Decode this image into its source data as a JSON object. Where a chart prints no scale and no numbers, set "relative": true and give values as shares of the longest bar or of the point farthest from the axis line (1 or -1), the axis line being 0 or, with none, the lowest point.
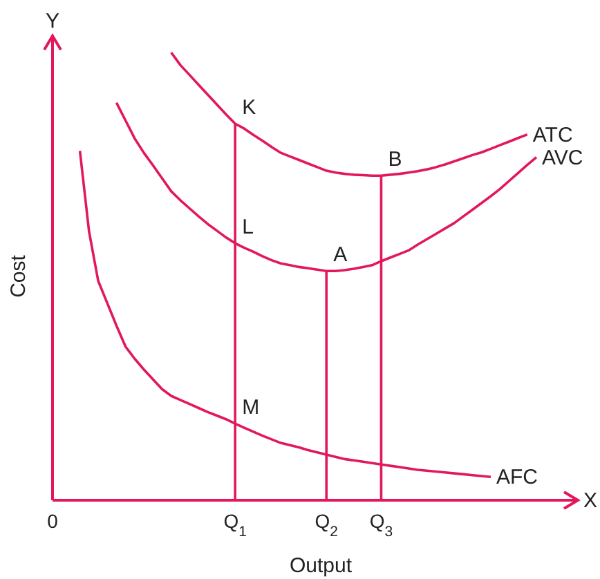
{
  "chart_data": {
    "type": "line",
    "relative": true,
    "xlabel": "Output",
    "ylabel": "Cost",
    "categories": [
      "0",
      null,
      null,
      null,
      null,
      null,
      null,
      null,
      null,
      null,
      null,
      null,
      null,
      null,
      null,
      null,
      null,
      null,
      null,
      null,
      "Q$_{1}$",
      null,
      null,
      null,
      null,
      null,
      null,
      null,
      null,
      null,
      "Q$_{2}$",
      null,
      null,
      null,
      null,
      null,
      "Q$_{3}$",
      null,
      null,
      null,
      null,
      null,
      null,
      null,
      null,
      null,
      null,
      null,
      null,
      null,
      null,
      null,
      null,
      null
    ],
    "series": [
      {
        "name": "ATC",
        "color": "#e2185b",
        "values": [
          null,
          null,
          null,
          null,
          null,
          null,
          null,
          null,
          null,
          null,
          null,
          null,
          null,
          1.0,
          0.972,
          0.95,
          0.928,
          0.906,
          0.884,
          0.862,
          0.841,
          0.83,
          0.816,
          0.803,
          0.789,
          0.776,
          0.768,
          0.76,
          0.752,
          0.744,
          0.736,
          0.732,
          0.729,
          0.727,
          0.726,
          0.725,
          0.725,
          0.727,
          0.729,
          0.732,
          0.735,
          0.739,
          0.744,
          0.75,
          0.757,
          0.764,
          0.771,
          0.777,
          0.785,
          0.793,
          0.801,
          0.809,
          0.817,
          null
        ]
      },
      {
        "name": "AVC",
        "color": "#e2185b",
        "values": [
          null,
          null,
          null,
          null,
          null,
          null,
          null,
          0.888,
          0.848,
          0.808,
          0.776,
          0.748,
          0.719,
          0.69,
          0.67,
          0.652,
          0.634,
          0.617,
          0.602,
          0.587,
          0.574,
          0.564,
          0.555,
          0.545,
          0.536,
          0.529,
          0.525,
          0.521,
          0.518,
          0.515,
          0.512,
          0.512,
          0.514,
          0.517,
          0.521,
          0.525,
          0.534,
          0.542,
          0.55,
          0.558,
          0.571,
          0.583,
          0.595,
          0.607,
          0.619,
          0.634,
          0.649,
          0.664,
          0.679,
          0.695,
          0.713,
          0.731,
          0.749,
          0.766
        ]
      },
      {
        "name": "AFC",
        "color": "#e2185b",
        "values": [
          null,
          null,
          null,
          0.78,
          0.6,
          0.49,
          0.44,
          0.39,
          0.343,
          0.316,
          0.292,
          0.27,
          0.248,
          0.233,
          0.224,
          0.215,
          0.206,
          0.197,
          0.189,
          0.181,
          0.171,
          0.162,
          0.153,
          0.144,
          0.136,
          0.128,
          0.123,
          0.118,
          0.112,
          0.107,
          0.102,
          0.097,
          0.092,
          0.089,
          0.086,
          0.083,
          0.08,
          0.077,
          0.074,
          0.071,
          0.068,
          0.066,
          0.064,
          0.062,
          0.06,
          0.058,
          0.056,
          0.054,
          0.052,
          null,
          null,
          null,
          null,
          null
        ]
      }
    ],
    "ref_lines": [
      {
        "axis": "x",
        "value": "Q$_{1}$",
        "color": "#e2185b"
      },
      {
        "axis": "x",
        "value": "Q$_{2}$",
        "color": "#e2185b"
      },
      {
        "axis": "x",
        "value": "Q$_{3}$",
        "color": "#e2185b"
      }
    ],
    "annotations": [
      "Y",
      "X",
      {
        "text": "K",
        "x": "Q$_{1}$",
        "y": 0.841
      },
      {
        "text": "L",
        "x": "Q$_{1}$",
        "y": 0.574
      },
      {
        "text": "M",
        "x": "Q$_{1}$",
        "y": 0.171
      },
      {
        "text": "A",
        "x": "Q$_{2}$",
        "y": 0.512
      },
      {
        "text": "B",
        "x": "Q$_{3}$",
        "y": 0.725
      }
    ],
    "legend": false,
    "marker": "none",
    "line_style": "solid"
  }
}
